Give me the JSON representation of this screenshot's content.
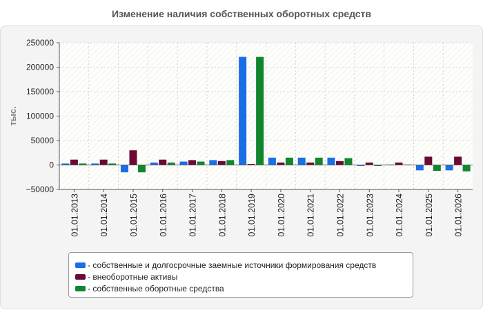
{
  "chart_data": {
    "type": "bar",
    "title": "Изменение наличия собственных оборотных средств",
    "ylabel": "тыс.",
    "xlabel": "",
    "ylim": [
      -50000,
      250000
    ],
    "yticks": [
      "250000",
      "200000",
      "150000",
      "100000",
      "50000",
      "0",
      "−50000"
    ],
    "grid": true,
    "legend_position": "bottom",
    "categories": [
      "01.01.2013",
      "01.01.2014",
      "01.01.2015",
      "01.01.2016",
      "01.01.2017",
      "01.01.2018",
      "01.01.2019",
      "01.01.2020",
      "01.01.2021",
      "01.01.2022",
      "01.01.2023",
      "01.01.2024",
      "01.01.2025",
      "01.01.2026"
    ],
    "series": [
      {
        "name": "- собственные и долгосрочные заемные источники формирования средств",
        "color": "#1a6ee6",
        "values": [
          3000,
          3000,
          -15000,
          5000,
          7000,
          10000,
          221000,
          15000,
          15000,
          15000,
          -2000,
          1000,
          -11000,
          -11000
        ]
      },
      {
        "name": "- внеоборотные активы",
        "color": "#6b0a35",
        "values": [
          11000,
          11000,
          30000,
          11000,
          10000,
          8000,
          2000,
          5000,
          5000,
          8000,
          5000,
          5000,
          17000,
          17000
        ]
      },
      {
        "name": "- собственные оборотные средства",
        "color": "#12862f",
        "values": [
          3000,
          3000,
          -15000,
          5000,
          7000,
          10000,
          221000,
          15000,
          15000,
          14000,
          -2000,
          1000,
          -12000,
          -13000
        ]
      }
    ]
  }
}
